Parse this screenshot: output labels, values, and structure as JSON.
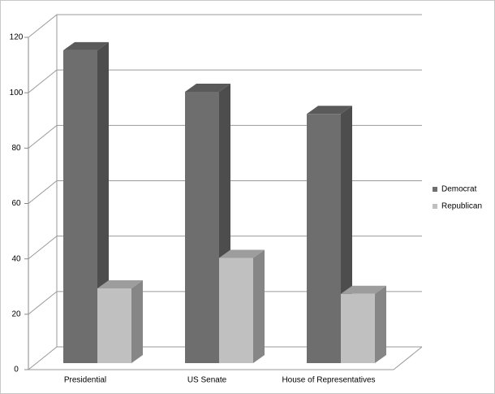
{
  "chart_data": {
    "type": "bar3d",
    "categories": [
      "Presidential",
      "US Senate",
      "House of Representatives"
    ],
    "series": [
      {
        "name": "Democrat",
        "color": "#6e6e6e",
        "values": [
          113,
          98,
          90
        ]
      },
      {
        "name": "Republican",
        "color": "#c0c0c0",
        "values": [
          27,
          38,
          25
        ]
      }
    ],
    "ylim": [
      0,
      120
    ],
    "yticks": [
      0,
      20,
      40,
      60,
      80,
      100,
      120
    ],
    "grid": true,
    "legend": "right"
  }
}
